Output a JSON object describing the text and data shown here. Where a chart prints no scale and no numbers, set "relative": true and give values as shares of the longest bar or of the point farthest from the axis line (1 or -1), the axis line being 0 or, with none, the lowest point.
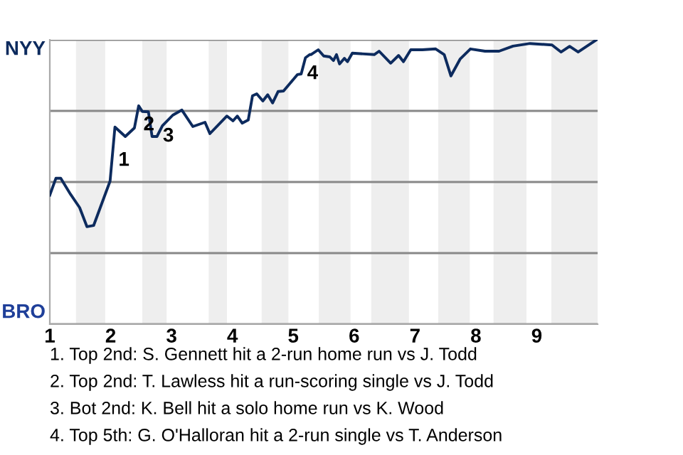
{
  "chart_data": {
    "type": "line",
    "relative": true,
    "x": [
      1.0,
      1.1,
      1.18,
      1.34,
      1.49,
      1.61,
      1.72,
      1.99,
      2.07,
      2.24,
      2.39,
      2.46,
      2.52,
      2.62,
      2.68,
      2.76,
      2.85,
      3.02,
      3.17,
      3.35,
      3.55,
      3.63,
      3.91,
      4.01,
      4.08,
      4.16,
      4.26,
      4.33,
      4.4,
      4.5,
      4.58,
      4.66,
      4.75,
      4.84,
      5.07,
      5.13,
      5.2,
      5.27,
      5.29,
      5.41,
      5.5,
      5.6,
      5.66,
      5.71,
      5.76,
      5.84,
      5.89,
      5.97,
      6.33,
      6.41,
      6.6,
      6.73,
      6.81,
      6.93,
      7.12,
      7.34,
      7.48,
      7.59,
      7.74,
      7.91,
      8.15,
      8.38,
      8.61,
      8.89,
      9.25,
      9.4,
      9.54,
      9.68,
      9.98
    ],
    "series": [
      {
        "color": "#0d2b5e",
        "values": [
          0.454,
          0.513,
          0.513,
          0.457,
          0.41,
          0.343,
          0.347,
          0.503,
          0.693,
          0.66,
          0.69,
          0.768,
          0.748,
          0.747,
          0.66,
          0.66,
          0.698,
          0.735,
          0.753,
          0.695,
          0.71,
          0.67,
          0.732,
          0.715,
          0.732,
          0.707,
          0.718,
          0.803,
          0.81,
          0.785,
          0.807,
          0.778,
          0.818,
          0.82,
          0.878,
          0.88,
          0.937,
          0.948,
          0.948,
          0.965,
          0.943,
          0.94,
          0.927,
          0.948,
          0.915,
          0.935,
          0.923,
          0.953,
          0.948,
          0.96,
          0.918,
          0.945,
          0.923,
          0.965,
          0.965,
          0.968,
          0.948,
          0.873,
          0.932,
          0.968,
          0.96,
          0.96,
          0.978,
          0.987,
          0.982,
          0.957,
          0.977,
          0.957,
          1.0
        ]
      }
    ],
    "xlim": [
      1,
      10
    ],
    "xticks": [
      1,
      2,
      3,
      4,
      5,
      6,
      7,
      8,
      9
    ],
    "grid": "y",
    "bands": [
      {
        "axis": "x",
        "from": 1.43,
        "to": 1.91,
        "color": "#eeeeee"
      },
      {
        "axis": "x",
        "from": 2.52,
        "to": 2.92,
        "color": "#eeeeee"
      },
      {
        "axis": "x",
        "from": 3.61,
        "to": 3.91,
        "color": "#eeeeee"
      },
      {
        "axis": "x",
        "from": 4.48,
        "to": 4.92,
        "color": "#eeeeee"
      },
      {
        "axis": "x",
        "from": 5.42,
        "to": 5.94,
        "color": "#eeeeee"
      },
      {
        "axis": "x",
        "from": 6.28,
        "to": 6.9,
        "color": "#eeeeee"
      },
      {
        "axis": "x",
        "from": 7.38,
        "to": 7.9,
        "color": "#eeeeee"
      },
      {
        "axis": "x",
        "from": 8.29,
        "to": 8.83,
        "color": "#eeeeee"
      },
      {
        "axis": "x",
        "from": 9.24,
        "to": 10,
        "color": "#eeeeee"
      }
    ],
    "annotations": [
      {
        "text": "1",
        "x": 2.03,
        "y": 0.575
      },
      {
        "text": "2",
        "x": 2.44,
        "y": 0.7
      },
      {
        "text": "3",
        "x": 2.76,
        "y": 0.66
      },
      {
        "text": "4",
        "x": 5.13,
        "y": 0.88
      },
      "NYY",
      "BRO",
      "1. Top 2nd: S. Gennett hit a 2-run home run vs J. Todd",
      "2. Top 2nd: T. Lawless hit a run-scoring single vs J. Todd",
      "3. Bot 2nd: K. Bell hit a solo home run vs K. Wood",
      "4. Top 5th: G. O'Halloran hit a 2-run single vs T. Anderson"
    ]
  }
}
